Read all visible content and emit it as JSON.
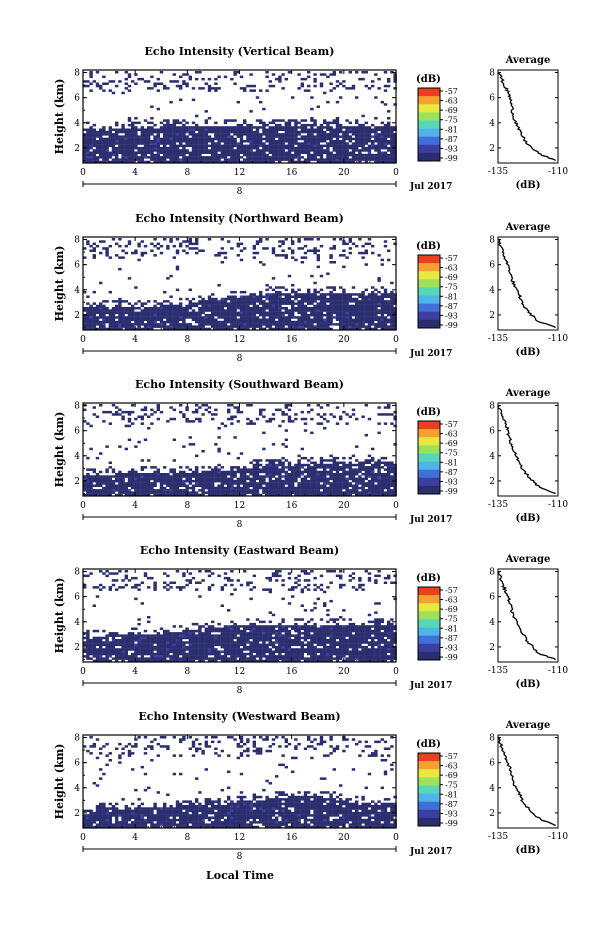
{
  "figure": {
    "xlabel": "Local Time",
    "date_label": "Jul 2017",
    "day_label": "8",
    "x_ticks": [
      "0",
      "4",
      "8",
      "12",
      "16",
      "20",
      "0"
    ],
    "y_ticks": [
      "2",
      "4",
      "6",
      "8"
    ],
    "ylabel": "Height (km)",
    "cbar_title": "(dB)",
    "cbar_ticks": [
      "-57",
      "-63",
      "-69",
      "-75",
      "-81",
      "-87",
      "-93",
      "-99"
    ],
    "avg_title": "Average",
    "avg_x_ticks": [
      "-135",
      "-110"
    ],
    "avg_xlabel": "(dB)",
    "colors": [
      "#2b2e6e",
      "#3c3fa0",
      "#3f6fd8",
      "#4fb4e8",
      "#58d6b8",
      "#9ee25a",
      "#e8e840",
      "#f5a030",
      "#e84020"
    ]
  },
  "chart_data": [
    {
      "type": "heatmap",
      "title": "Echo Intensity (Vertical Beam)",
      "xlim": [
        0,
        24
      ],
      "ylim": [
        0.8,
        8.2
      ],
      "cloud_top_km": [
        3.6,
        3.6,
        3.7,
        3.8,
        3.9,
        3.9,
        3.9,
        3.9,
        3.9,
        3.9,
        3.9,
        3.9,
        3.9
      ],
      "avg_profile": {
        "xlim": [
          -135,
          -110
        ],
        "ylim": [
          0.8,
          8.2
        ],
        "height_km": [
          8.0,
          7.5,
          7.0,
          6.5,
          6.0,
          5.5,
          5.0,
          4.5,
          4.0,
          3.5,
          3.0,
          2.5,
          2.0,
          1.5,
          1.0
        ],
        "db": [
          -134.5,
          -133.5,
          -132.5,
          -131,
          -130,
          -129.5,
          -129,
          -128.5,
          -127.5,
          -126.5,
          -125,
          -123.5,
          -121,
          -117.5,
          -111
        ]
      }
    },
    {
      "type": "heatmap",
      "title": "Echo Intensity (Northward Beam)",
      "xlim": [
        0,
        24
      ],
      "ylim": [
        0.8,
        8.2
      ],
      "cloud_top_km": [
        2.6,
        2.8,
        2.8,
        2.8,
        3.0,
        3.5,
        3.6,
        3.8,
        3.8,
        3.8,
        3.8,
        3.8,
        3.8
      ],
      "avg_profile": {
        "xlim": [
          -135,
          -110
        ],
        "ylim": [
          0.8,
          8.2
        ],
        "height_km": [
          8.0,
          7.5,
          7.0,
          6.5,
          6.0,
          5.5,
          5.0,
          4.5,
          4.0,
          3.5,
          3.0,
          2.5,
          2.0,
          1.5,
          1.0
        ],
        "db": [
          -134.5,
          -134,
          -133,
          -132,
          -131,
          -130,
          -129.5,
          -128.5,
          -127.5,
          -126,
          -125,
          -123.5,
          -121,
          -118.5,
          -111
        ]
      }
    },
    {
      "type": "heatmap",
      "title": "Echo Intensity (Southward Beam)",
      "xlim": [
        0,
        24
      ],
      "ylim": [
        0.8,
        8.2
      ],
      "cloud_top_km": [
        2.6,
        2.6,
        2.7,
        2.8,
        2.8,
        2.9,
        3.0,
        3.4,
        3.5,
        3.5,
        3.5,
        3.6,
        3.6
      ],
      "avg_profile": {
        "xlim": [
          -135,
          -110
        ],
        "ylim": [
          0.8,
          8.2
        ],
        "height_km": [
          8.0,
          7.5,
          7.0,
          6.5,
          6.0,
          5.5,
          5.0,
          4.5,
          4.0,
          3.5,
          3.0,
          2.5,
          2.0,
          1.5,
          1.0
        ],
        "db": [
          -134.5,
          -134,
          -133,
          -131.5,
          -131,
          -130.5,
          -129.5,
          -128.5,
          -127.5,
          -126.5,
          -125,
          -123,
          -120.5,
          -118,
          -111
        ]
      }
    },
    {
      "type": "heatmap",
      "title": "Echo Intensity (Eastward Beam)",
      "xlim": [
        0,
        24
      ],
      "ylim": [
        0.8,
        8.2
      ],
      "cloud_top_km": [
        2.9,
        3.0,
        3.1,
        3.2,
        3.4,
        3.7,
        3.8,
        3.8,
        3.8,
        3.8,
        3.8,
        3.8,
        3.8
      ],
      "avg_profile": {
        "xlim": [
          -135,
          -110
        ],
        "ylim": [
          0.8,
          8.2
        ],
        "height_km": [
          8.0,
          7.5,
          7.0,
          6.5,
          6.0,
          5.5,
          5.0,
          4.5,
          4.0,
          3.5,
          3.0,
          2.5,
          2.0,
          1.5,
          1.0
        ],
        "db": [
          -134.5,
          -134,
          -133,
          -132,
          -131,
          -130,
          -129.5,
          -128.5,
          -127.5,
          -126,
          -124.5,
          -123,
          -120.5,
          -118,
          -111
        ]
      }
    },
    {
      "type": "heatmap",
      "title": "Echo Intensity (Westward Beam)",
      "xlim": [
        0,
        24
      ],
      "ylim": [
        0.8,
        8.2
      ],
      "cloud_top_km": [
        2.4,
        2.5,
        2.5,
        2.6,
        2.7,
        2.8,
        3.0,
        3.2,
        3.4,
        3.4,
        3.0,
        2.8,
        2.9
      ],
      "avg_profile": {
        "xlim": [
          -135,
          -110
        ],
        "ylim": [
          0.8,
          8.2
        ],
        "height_km": [
          8.0,
          7.5,
          7.0,
          6.5,
          6.0,
          5.5,
          5.0,
          4.5,
          4.0,
          3.5,
          3.0,
          2.5,
          2.0,
          1.5,
          1.0
        ],
        "db": [
          -134.5,
          -134,
          -133,
          -132,
          -131,
          -130,
          -129.5,
          -128.5,
          -127.5,
          -126,
          -125,
          -123,
          -120.5,
          -117.5,
          -111
        ]
      }
    }
  ]
}
